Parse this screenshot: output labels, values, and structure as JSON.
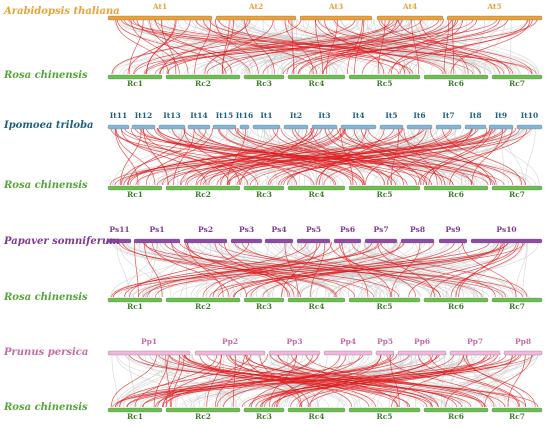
{
  "colors": {
    "At": "#e8a23a",
    "Rc": "#6bbf4e",
    "It": "#7fb6dd",
    "Ps": "#8e4ba6",
    "Pp": "#f2b6df",
    "species_At": "#e8a23a",
    "species_Rc": "#55a63b",
    "species_It": "#1f5f82",
    "species_Ps": "#7d3a93",
    "species_Pp": "#c96aa6",
    "synteny_red": "#e31a1c",
    "synteny_gray": "#cccccc"
  },
  "panels": [
    {
      "query_species": "Arabidopsis thaliana",
      "query_key": "At",
      "query_chromosomes": [
        "At1",
        "At2",
        "At3",
        "At4",
        "At5"
      ],
      "target_species": "Rosa chinensis",
      "target_chromosomes": [
        "Rc1",
        "Rc2",
        "Rc3",
        "Rc4",
        "Rc5",
        "Rc6",
        "Rc7"
      ]
    },
    {
      "query_species": "Ipomoea triloba",
      "query_key": "It",
      "query_chromosomes": [
        "It11",
        "It12",
        "It13",
        "It14",
        "It15",
        "It16",
        "It1",
        "It2",
        "It3",
        "It4",
        "It5",
        "It6",
        "It7",
        "It8",
        "It9",
        "It10"
      ],
      "target_species": "Rosa chinensis",
      "target_chromosomes": [
        "Rc1",
        "Rc2",
        "Rc3",
        "Rc4",
        "Rc5",
        "Rc6",
        "Rc7"
      ]
    },
    {
      "query_species": "Papaver somniferum",
      "query_key": "Ps",
      "query_chromosomes": [
        "Ps11",
        "Ps1",
        "Ps2",
        "Ps3",
        "Ps4",
        "Ps5",
        "Ps6",
        "Ps7",
        "Ps8",
        "Ps9",
        "Ps10"
      ],
      "target_species": "Rosa chinensis",
      "target_chromosomes": [
        "Rc1",
        "Rc2",
        "Rc3",
        "Rc4",
        "Rc5",
        "Rc6",
        "Rc7"
      ]
    },
    {
      "query_species": "Prunus persica",
      "query_key": "Pp",
      "query_chromosomes": [
        "Pp1",
        "Pp2",
        "Pp3",
        "Pp4",
        "Pp5",
        "Pp6",
        "Pp7",
        "Pp8"
      ],
      "target_species": "Rosa chinensis",
      "target_chromosomes": [
        "Rc1",
        "Rc2",
        "Rc3",
        "Rc4",
        "Rc5",
        "Rc6",
        "Rc7"
      ]
    }
  ]
}
